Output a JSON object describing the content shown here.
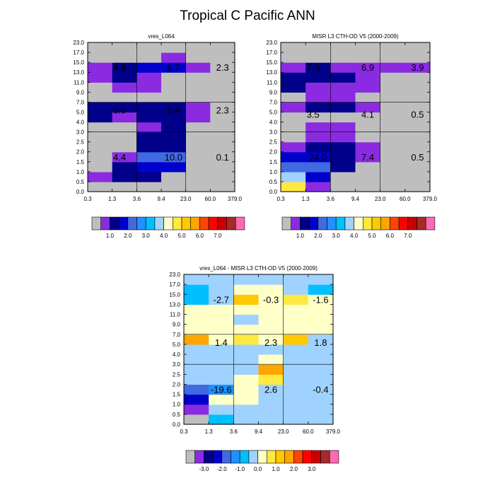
{
  "title": "Tropical C Pacific ANN",
  "colors": {
    "missing": "#bebebe",
    "palette": [
      "#bebebe",
      "#8a2be2",
      "#00008b",
      "#0000cd",
      "#4169e1",
      "#1e90ff",
      "#00bfff",
      "#a0d2ff",
      "#ffffc8",
      "#ffe840",
      "#ffc800",
      "#ffa500",
      "#ff4500",
      "#ff0000",
      "#c80000",
      "#a52a2a",
      "#ff69b4"
    ],
    "diff_palette": [
      "#bebebe",
      "#8a2be2",
      "#00008b",
      "#0000cd",
      "#4169e1",
      "#1e90ff",
      "#00bfff",
      "#a0d2ff",
      "#ffffc8",
      "#ffe840",
      "#ffc800",
      "#ffa500",
      "#ff4500",
      "#ff0000",
      "#c80000",
      "#a52a2a",
      "#ff69b4"
    ]
  },
  "chart_data": [
    {
      "type": "heatmap",
      "title": "vres_L064",
      "x_ticks": [
        "0.3",
        "1.3",
        "3.6",
        "9.4",
        "23.0",
        "60.0",
        "379.0"
      ],
      "y_ticks": [
        "0.0",
        "0.5",
        "1.0",
        "1.5",
        "2.0",
        "2.5",
        "3.0",
        "4.0",
        "5.0",
        "7.0",
        "9.0",
        "11.0",
        "13.0",
        "15.0",
        "17.0",
        "23.0"
      ],
      "cells": [
        [
          0,
          0,
          0,
          0,
          0,
          0
        ],
        [
          1,
          2,
          2,
          0,
          0,
          0
        ],
        [
          0,
          2,
          3,
          3,
          0,
          0
        ],
        [
          0,
          1,
          4,
          4,
          0,
          0
        ],
        [
          0,
          0,
          2,
          2,
          0,
          0
        ],
        [
          0,
          0,
          2,
          2,
          0,
          0
        ],
        [
          0,
          0,
          1,
          2,
          0,
          0
        ],
        [
          2,
          1,
          2,
          2,
          1,
          0
        ],
        [
          2,
          2,
          2,
          2,
          1,
          0
        ],
        [
          0,
          0,
          0,
          0,
          0,
          0
        ],
        [
          0,
          1,
          1,
          0,
          0,
          0
        ],
        [
          1,
          2,
          1,
          0,
          0,
          0
        ],
        [
          1,
          2,
          3,
          3,
          1,
          0
        ],
        [
          0,
          0,
          0,
          1,
          0,
          0
        ],
        [
          0,
          0,
          0,
          0,
          0,
          0
        ]
      ],
      "annotations": [
        {
          "row": 12,
          "col": 0.8,
          "text": "4.8"
        },
        {
          "row": 12,
          "col": 3.0,
          "text": "6.7"
        },
        {
          "row": 12,
          "col": 5.0,
          "text": "2.3"
        },
        {
          "row": 7.7,
          "col": 0.8,
          "text": "5.0"
        },
        {
          "row": 7.7,
          "col": 3.0,
          "text": "6.4"
        },
        {
          "row": 7.7,
          "col": 5.0,
          "text": "2.3"
        },
        {
          "row": 3,
          "col": 0.8,
          "text": "4.4"
        },
        {
          "row": 3,
          "col": 3.0,
          "text": "10.0"
        },
        {
          "row": 3,
          "col": 5.0,
          "text": "0.1"
        }
      ],
      "colorbar_labels": [
        "1.0",
        "2.0",
        "3.0",
        "4.0",
        "5.0",
        "6.0",
        "7.0"
      ]
    },
    {
      "type": "heatmap",
      "title": "MISR L3 CTH-OD V5 (2000-2009)",
      "x_ticks": [
        "0.3",
        "1.3",
        "3.6",
        "9.4",
        "23.0",
        "60.0",
        "379.0"
      ],
      "y_ticks": [
        "0.0",
        "0.5",
        "1.0",
        "1.5",
        "2.0",
        "2.5",
        "3.0",
        "4.0",
        "5.0",
        "7.0",
        "9.0",
        "11.0",
        "13.0",
        "15.0",
        "17.0",
        "23.0"
      ],
      "cells": [
        [
          9,
          1,
          0,
          0,
          0,
          0
        ],
        [
          7,
          3,
          0,
          0,
          0,
          0
        ],
        [
          4,
          4,
          2,
          0,
          0,
          0
        ],
        [
          3,
          3,
          2,
          1,
          0,
          0
        ],
        [
          1,
          2,
          2,
          1,
          0,
          0
        ],
        [
          0,
          1,
          1,
          0,
          0,
          0
        ],
        [
          0,
          1,
          1,
          0,
          0,
          0
        ],
        [
          0,
          0,
          0,
          0,
          0,
          0
        ],
        [
          1,
          2,
          2,
          1,
          0,
          0
        ],
        [
          0,
          1,
          1,
          0,
          0,
          0
        ],
        [
          2,
          1,
          1,
          1,
          0,
          0
        ],
        [
          2,
          2,
          2,
          1,
          0,
          0
        ],
        [
          1,
          2,
          1,
          1,
          1,
          1
        ],
        [
          0,
          0,
          0,
          0,
          0,
          0
        ],
        [
          0,
          0,
          0,
          0,
          0,
          0
        ]
      ],
      "annotations": [
        {
          "row": 12,
          "col": 0.8,
          "text": "7.6"
        },
        {
          "row": 12,
          "col": 3.0,
          "text": "6.9"
        },
        {
          "row": 12,
          "col": 5.0,
          "text": "3.9"
        },
        {
          "row": 7.3,
          "col": 0.8,
          "text": "3.5"
        },
        {
          "row": 7.3,
          "col": 3.0,
          "text": "4.1"
        },
        {
          "row": 7.3,
          "col": 5.0,
          "text": "0.5"
        },
        {
          "row": 3,
          "col": 1.0,
          "text": "24.0"
        },
        {
          "row": 3,
          "col": 3.0,
          "text": "7.4"
        },
        {
          "row": 3,
          "col": 5.0,
          "text": "0.5"
        }
      ],
      "colorbar_labels": [
        "1.0",
        "2.0",
        "3.0",
        "4.0",
        "5.0",
        "6.0",
        "7.0"
      ]
    },
    {
      "type": "heatmap",
      "title": "vres_L064 - MISR L3 CTH-OD V5 (2000-2009)",
      "x_ticks": [
        "0.3",
        "1.3",
        "3.6",
        "9.4",
        "23.0",
        "60.0",
        "379.0"
      ],
      "y_ticks": [
        "0.0",
        "0.5",
        "1.0",
        "1.5",
        "2.0",
        "2.5",
        "3.0",
        "4.0",
        "5.0",
        "7.0",
        "9.0",
        "11.0",
        "13.0",
        "15.0",
        "17.0",
        "23.0"
      ],
      "cells": [
        [
          0,
          6,
          7,
          7,
          7,
          7
        ],
        [
          1,
          7,
          7,
          7,
          7,
          7
        ],
        [
          3,
          8,
          8,
          7,
          7,
          7
        ],
        [
          4,
          5,
          8,
          7,
          7,
          7
        ],
        [
          7,
          7,
          8,
          9,
          7,
          7
        ],
        [
          7,
          7,
          7,
          11,
          7,
          7
        ],
        [
          7,
          7,
          7,
          8,
          7,
          7
        ],
        [
          7,
          7,
          7,
          7,
          7,
          7
        ],
        [
          11,
          8,
          9,
          8,
          10,
          7
        ],
        [
          8,
          8,
          8,
          8,
          8,
          8
        ],
        [
          8,
          8,
          7,
          8,
          8,
          8
        ],
        [
          8,
          8,
          8,
          8,
          8,
          8
        ],
        [
          6,
          7,
          10,
          8,
          9,
          8
        ],
        [
          6,
          7,
          8,
          8,
          7,
          6
        ],
        [
          7,
          7,
          7,
          7,
          7,
          7
        ]
      ],
      "annotations": [
        {
          "row": 12,
          "col": 1.0,
          "text": "-2.7"
        },
        {
          "row": 12,
          "col": 3.0,
          "text": "-0.3"
        },
        {
          "row": 12,
          "col": 5.0,
          "text": "-1.6"
        },
        {
          "row": 7.7,
          "col": 1.0,
          "text": "1.4"
        },
        {
          "row": 7.7,
          "col": 3.0,
          "text": "2.3"
        },
        {
          "row": 7.7,
          "col": 5.0,
          "text": "1.8"
        },
        {
          "row": 3,
          "col": 1.0,
          "text": "-19.6"
        },
        {
          "row": 3,
          "col": 3.0,
          "text": "2.6"
        },
        {
          "row": 3,
          "col": 5.0,
          "text": "-0.4"
        }
      ],
      "colorbar_labels": [
        "-3.0",
        "-2.0",
        "-1.0",
        "0.0",
        "1.0",
        "2.0",
        "3.0"
      ]
    }
  ]
}
